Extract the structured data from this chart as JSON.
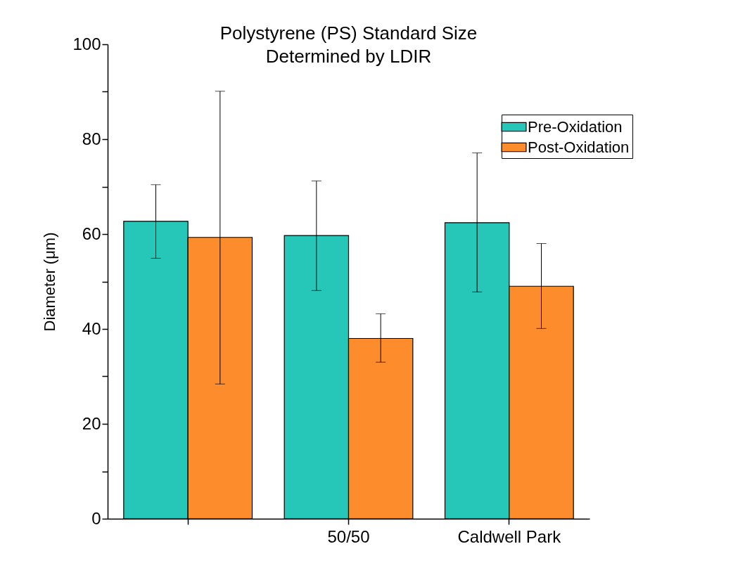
{
  "chart_data": {
    "type": "bar",
    "title": "Polystyrene (PS) Standard Size\nDetermined by LDIR",
    "ylabel": "Diameter (μm)",
    "categories": [
      null,
      "50/50",
      "Caldwell Park"
    ],
    "series": [
      {
        "name": "Pre-Oxidation",
        "color": "#26c6b8",
        "values": [
          62.7,
          59.7,
          62.4
        ],
        "errors": [
          [
            54.9,
            70.4
          ],
          [
            48.1,
            71.2
          ],
          [
            47.8,
            77.1
          ]
        ]
      },
      {
        "name": "Post-Oxidation",
        "color": "#fd8d2c",
        "values": [
          59.3,
          38.0,
          49.0
        ],
        "errors": [
          [
            28.4,
            90.1
          ],
          [
            33.0,
            43.2
          ],
          [
            40.1,
            58.0
          ]
        ]
      }
    ],
    "ylim": [
      0,
      100
    ],
    "yticks": [
      0,
      {
        "value": 10,
        "label": null
      },
      20,
      {
        "value": 30,
        "label": null
      },
      40,
      {
        "value": 50,
        "label": null
      },
      60,
      {
        "value": 70,
        "label": null
      },
      80,
      {
        "value": 90,
        "label": null
      },
      100
    ],
    "grid": false,
    "legend": "top right"
  }
}
